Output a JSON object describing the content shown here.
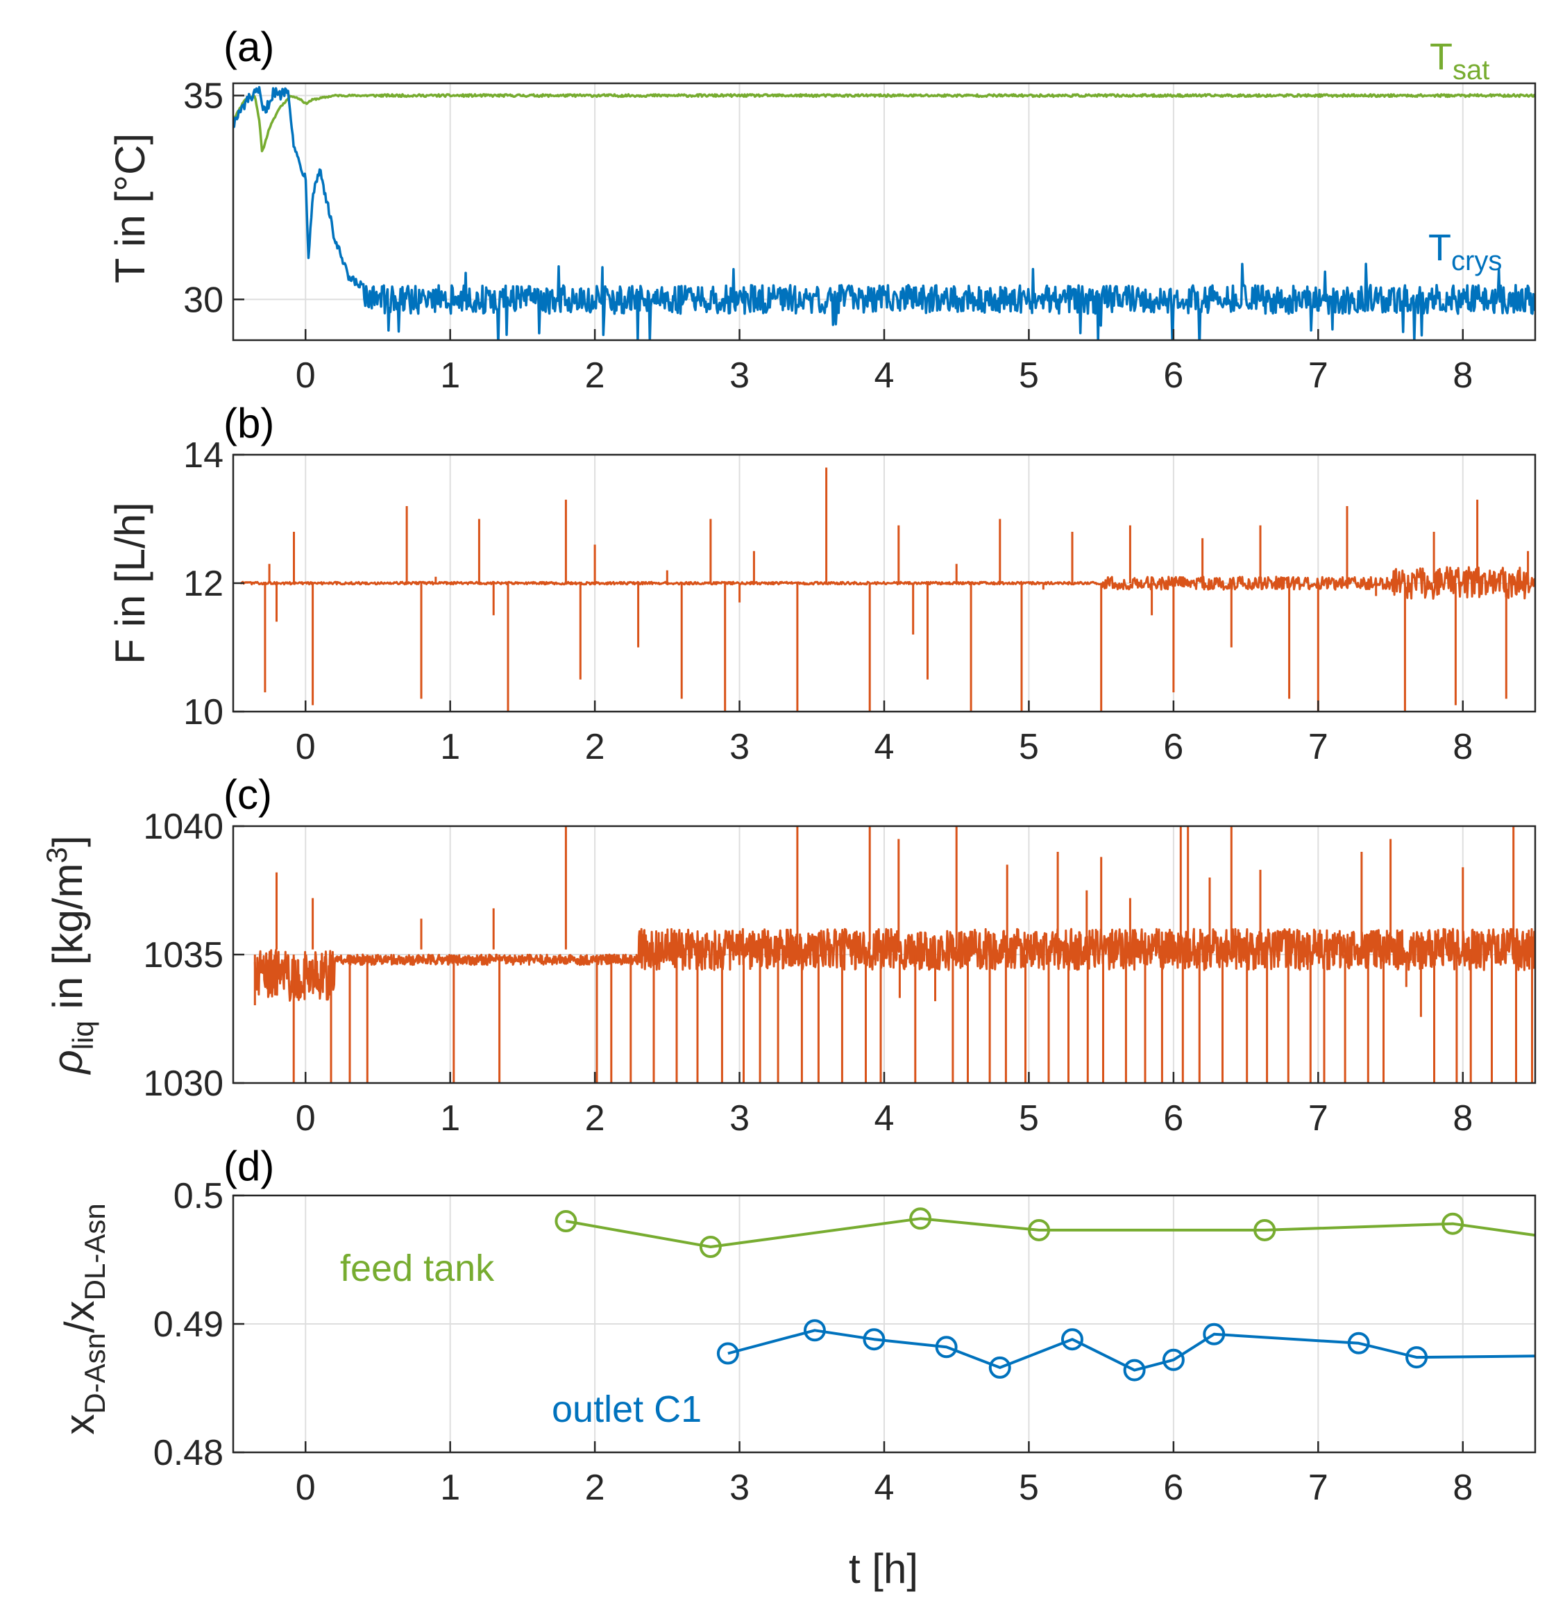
{
  "colors": {
    "green": "#77AC30",
    "blue": "#0072BD",
    "orange": "#D95319",
    "axis": "#262626",
    "grid": "#DEDEDE"
  },
  "chart_data": [
    {
      "id": "a",
      "panel_label": "(a)",
      "type": "line",
      "ylabel": "T in [°C]",
      "xlim": [
        -0.5,
        8.5
      ],
      "ylim": [
        29,
        35.3
      ],
      "xticks": [
        "0",
        "1",
        "2",
        "3",
        "4",
        "5",
        "6",
        "7",
        "8"
      ],
      "yticks": [
        "30",
        "35"
      ],
      "grid": true,
      "series": [
        {
          "name": "Tsat",
          "label_main": "T",
          "label_sub": "sat",
          "color": "#77AC30",
          "steady": 35.0,
          "noise": 0.03,
          "x": [
            -0.5,
            -0.42,
            -0.35,
            -0.32,
            -0.3,
            -0.25,
            -0.18,
            -0.1,
            -0.03,
            0.0,
            0.05,
            0.2,
            8.5
          ],
          "y": [
            34.4,
            34.9,
            35.0,
            34.4,
            33.6,
            34.2,
            34.7,
            35.0,
            34.9,
            34.8,
            34.9,
            35.0,
            35.0
          ]
        },
        {
          "name": "Tcrys",
          "label_main": "T",
          "label_sub": "crys",
          "color": "#0072BD",
          "steady": 30.0,
          "noise": 0.35,
          "x": [
            -0.5,
            -0.4,
            -0.32,
            -0.3,
            -0.28,
            -0.22,
            -0.18,
            -0.12,
            -0.08,
            0.0,
            0.02,
            0.05,
            0.1,
            0.2,
            0.3,
            0.5,
            0.8,
            8.5
          ],
          "y": [
            34.3,
            34.9,
            35.1,
            34.7,
            34.6,
            35.1,
            35.0,
            35.2,
            33.7,
            33.0,
            31.1,
            32.6,
            33.2,
            31.5,
            30.5,
            30.1,
            30.0,
            30.0
          ]
        }
      ]
    },
    {
      "id": "b",
      "panel_label": "(b)",
      "type": "line",
      "ylabel": "F in [L/h]",
      "xlim": [
        -0.5,
        8.5
      ],
      "ylim": [
        10,
        14
      ],
      "xticks": [
        "0",
        "1",
        "2",
        "3",
        "4",
        "5",
        "6",
        "7",
        "8"
      ],
      "yticks": [
        "10",
        "12",
        "14"
      ],
      "grid": true,
      "series": [
        {
          "name": "F",
          "color": "#D95319",
          "baseline": 12.0,
          "spikes_t": [
            -0.28,
            -0.25,
            -0.2,
            -0.08,
            0.05,
            0.7,
            0.8,
            0.9,
            1.2,
            1.3,
            1.4,
            1.8,
            1.9,
            2.0,
            2.3,
            2.5,
            2.6,
            2.8,
            2.9,
            3.0,
            3.1,
            3.4,
            3.6,
            3.9,
            4.1,
            4.2,
            4.3,
            4.5,
            4.6,
            4.8,
            4.95,
            5.1,
            5.3,
            5.5,
            5.7,
            5.85,
            6.0,
            6.2,
            6.4,
            6.6,
            6.8,
            7.0,
            7.2,
            7.4,
            7.6,
            7.8,
            7.95,
            8.1,
            8.3,
            8.45
          ],
          "spikes_v": [
            10.3,
            12.3,
            11.4,
            12.8,
            10.1,
            13.2,
            10.2,
            12.1,
            13.0,
            11.5,
            10.0,
            13.3,
            10.5,
            12.6,
            11.0,
            12.2,
            10.2,
            13.0,
            10.0,
            11.7,
            12.5,
            10.0,
            13.8,
            10.0,
            12.9,
            11.2,
            10.5,
            12.3,
            10.0,
            13.0,
            10.0,
            11.9,
            12.8,
            10.0,
            12.9,
            11.5,
            10.3,
            12.7,
            11.0,
            12.9,
            10.2,
            10.0,
            13.2,
            11.8,
            10.0,
            12.8,
            10.1,
            13.3,
            10.2,
            12.5
          ]
        }
      ]
    },
    {
      "id": "c",
      "panel_label": "(c)",
      "type": "line",
      "ylabel": "ρliq in [kg/m3]",
      "ylabel_rho": "ρ",
      "ylabel_rho_sub": "liq",
      "ylabel_rest": " in [kg/m",
      "ylabel_sup": "3",
      "ylabel_close": "]",
      "xlim": [
        -0.5,
        8.5
      ],
      "ylim": [
        1030,
        1040
      ],
      "xticks": [
        "0",
        "1",
        "2",
        "3",
        "4",
        "5",
        "6",
        "7",
        "8"
      ],
      "yticks": [
        "1030",
        "1035",
        "1040"
      ],
      "grid": true,
      "series": [
        {
          "name": "rho_liq",
          "color": "#D95319",
          "baseline_early": 1034.8,
          "baseline_late": 1035.2,
          "noise_early": 0.2,
          "noise_late": 0.8,
          "upspikes_t": [
            -0.2,
            0.05,
            0.8,
            1.3,
            1.8,
            3.4,
            3.9,
            4.1,
            4.5,
            4.85,
            5.2,
            5.4,
            5.5,
            5.7,
            6.05,
            6.1,
            6.25,
            6.4,
            6.6,
            7.3,
            7.5,
            8.0,
            8.35
          ],
          "upspikes_v": [
            1038.2,
            1037.2,
            1036.4,
            1036.8,
            1040.0,
            1040.0,
            1040.0,
            1039.5,
            1040.0,
            1038.5,
            1039.0,
            1037.5,
            1038.8,
            1037.2,
            1040.0,
            1040.0,
            1038.0,
            1040.0,
            1038.3,
            1039.0,
            1039.5,
            1038.4,
            1040.0
          ]
        }
      ]
    },
    {
      "id": "d",
      "panel_label": "(d)",
      "type": "line",
      "ylabel": "xD-Asn/xDL-Asn",
      "ylabel_x1": "x",
      "ylabel_sub1": "D-Asn",
      "ylabel_slash": "/x",
      "ylabel_sub2": "DL-Asn",
      "xlabel": "t [h]",
      "xlim": [
        -0.5,
        8.5
      ],
      "ylim": [
        0.48,
        0.5
      ],
      "xticks": [
        "0",
        "1",
        "2",
        "3",
        "4",
        "5",
        "6",
        "7",
        "8"
      ],
      "yticks": [
        "0.48",
        "0.49",
        "0.5"
      ],
      "grid": true,
      "series": [
        {
          "name": "feed tank",
          "color": "#77AC30",
          "x": [
            1.8,
            2.8,
            4.25,
            5.07,
            6.63,
            7.93
          ],
          "y": [
            0.498,
            0.496,
            0.4982,
            0.4973,
            0.4973,
            0.4978
          ],
          "end_x": 8.5,
          "end_y": 0.4969
        },
        {
          "name": "outlet C1",
          "color": "#0072BD",
          "x": [
            2.92,
            3.52,
            3.93,
            4.43,
            4.8,
            5.3,
            5.73,
            6.0,
            6.28,
            7.28,
            7.68
          ],
          "y": [
            0.4877,
            0.4895,
            0.4888,
            0.4882,
            0.4866,
            0.4888,
            0.4864,
            0.4872,
            0.4892,
            0.4885,
            0.4874
          ],
          "end_x": 8.5,
          "end_y": 0.4875
        }
      ]
    }
  ]
}
